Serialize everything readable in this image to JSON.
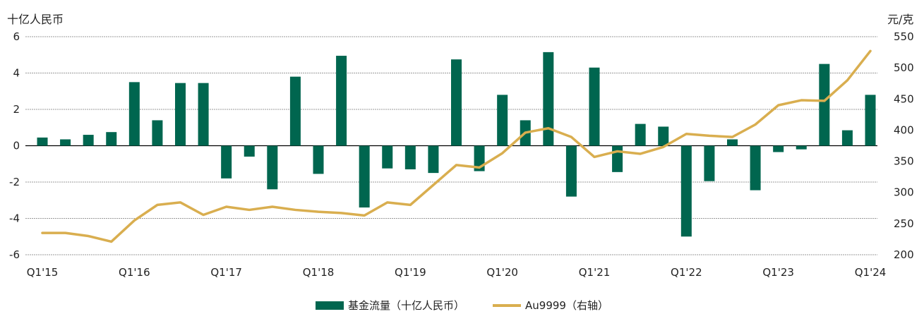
{
  "chart_data": {
    "type": "bar+line",
    "left_axis_label": "十亿人民币",
    "right_axis_label": "元/克",
    "left_ylim": [
      -6,
      6
    ],
    "left_ticks": [
      6,
      4,
      2,
      0,
      -2,
      -4,
      -6
    ],
    "right_ylim": [
      200,
      550
    ],
    "right_ticks": [
      550,
      500,
      450,
      400,
      350,
      300,
      250,
      200
    ],
    "grid": true,
    "legend_placement": "bottom",
    "x_tick_labels": [
      "Q1'15",
      "Q1'16",
      "Q1'17",
      "Q1'18",
      "Q1'19",
      "Q1'20",
      "Q1'21",
      "Q1'22",
      "Q1'23",
      "Q1'24"
    ],
    "categories": [
      "Q1'15",
      "Q2'15",
      "Q3'15",
      "Q4'15",
      "Q1'16",
      "Q2'16",
      "Q3'16",
      "Q4'16",
      "Q1'17",
      "Q2'17",
      "Q3'17",
      "Q4'17",
      "Q1'18",
      "Q2'18",
      "Q3'18",
      "Q4'18",
      "Q1'19",
      "Q2'19",
      "Q3'19",
      "Q4'19",
      "Q1'20",
      "Q2'20",
      "Q3'20",
      "Q4'20",
      "Q1'21",
      "Q2'21",
      "Q3'21",
      "Q4'21",
      "Q1'22",
      "Q2'22",
      "Q3'22",
      "Q4'22",
      "Q1'23",
      "Q2'23",
      "Q3'23",
      "Q4'23",
      "Q1'24"
    ],
    "series": [
      {
        "name": "基金流量（十亿人民币）",
        "type": "bar",
        "axis": "left",
        "color": "#00664f",
        "values": [
          0.45,
          0.35,
          0.6,
          0.75,
          3.5,
          1.4,
          3.45,
          3.45,
          -1.8,
          -0.6,
          -2.4,
          3.8,
          -1.55,
          4.95,
          -3.4,
          -1.25,
          -1.3,
          -1.5,
          4.75,
          -1.4,
          2.8,
          1.4,
          5.15,
          -2.8,
          4.3,
          -1.45,
          1.2,
          1.05,
          -5.0,
          -1.95,
          0.35,
          -2.45,
          -0.35,
          -0.2,
          4.5,
          0.85,
          2.8
        ]
      },
      {
        "name": "Au9999（右轴）",
        "type": "line",
        "axis": "right",
        "color": "#d9ae4f",
        "values": [
          235,
          235,
          230,
          221,
          255,
          280,
          284,
          264,
          277,
          272,
          277,
          272,
          269,
          267,
          263,
          284,
          280,
          312,
          344,
          340,
          363,
          396,
          403,
          389,
          357,
          366,
          362,
          373,
          394,
          391,
          389,
          409,
          440,
          448,
          447,
          480,
          527
        ]
      }
    ]
  }
}
